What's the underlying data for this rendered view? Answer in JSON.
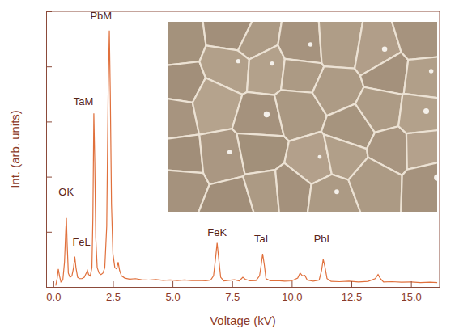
{
  "chart_data": {
    "type": "line",
    "x_label": "Voltage (kV)",
    "y_label": "Int. (arb. units)",
    "color": "#e0703c",
    "xlim": [
      -0.3,
      16.2
    ],
    "xticks": [
      {
        "value": 0,
        "label": "0.0"
      },
      2.5,
      {
        "value": 5,
        "label": "5.0"
      },
      7.5,
      {
        "value": 10,
        "label": "10.0"
      },
      12.5,
      {
        "value": 15,
        "label": "15.0"
      }
    ],
    "ylim": [
      0,
      100
    ],
    "yticks": [
      0,
      20,
      40,
      60,
      80,
      100
    ],
    "tick_labels": "x",
    "x": [
      0.1,
      0.16,
      0.21,
      0.26,
      0.32,
      0.4,
      0.47,
      0.52,
      0.55,
      0.58,
      0.63,
      0.7,
      0.78,
      0.85,
      0.9,
      0.95,
      1.02,
      1.1,
      1.2,
      1.3,
      1.38,
      1.43,
      1.48,
      1.55,
      1.62,
      1.66,
      1.7,
      1.74,
      1.78,
      1.84,
      1.92,
      2.0,
      2.08,
      2.16,
      2.24,
      2.3,
      2.35,
      2.39,
      2.44,
      2.5,
      2.58,
      2.66,
      2.72,
      2.78,
      2.86,
      3.0,
      3.2,
      3.45,
      3.7,
      4.0,
      4.3,
      4.6,
      4.9,
      5.2,
      5.5,
      5.8,
      6.1,
      6.4,
      6.6,
      6.72,
      6.8,
      6.87,
      6.94,
      7.02,
      7.15,
      7.35,
      7.6,
      7.8,
      7.95,
      8.05,
      8.25,
      8.5,
      8.65,
      8.72,
      8.78,
      8.85,
      8.92,
      9.1,
      9.4,
      9.7,
      10.0,
      10.25,
      10.35,
      10.45,
      10.55,
      10.65,
      10.9,
      11.15,
      11.25,
      11.32,
      11.4,
      11.48,
      11.65,
      12.0,
      12.4,
      12.8,
      13.2,
      13.5,
      13.62,
      13.72,
      13.85,
      14.2,
      14.6,
      15.0,
      15.4,
      15.8,
      16.1
    ],
    "values": [
      0.5,
      3,
      6.5,
      4,
      1.8,
      2.5,
      9,
      20,
      25,
      16,
      5,
      3.5,
      4,
      7,
      11,
      7,
      3.5,
      3,
      3,
      3.5,
      5,
      6,
      4.5,
      4,
      7,
      25,
      63,
      45,
      18,
      7,
      5,
      4.5,
      5,
      7,
      22,
      70,
      93,
      70,
      30,
      12,
      7,
      6.5,
      9,
      6,
      4,
      3.2,
      2.8,
      3,
      2.6,
      2.5,
      2.7,
      2.4,
      2.5,
      2.3,
      2.5,
      2.3,
      2.4,
      2.2,
      2.5,
      4,
      10,
      16,
      10,
      3.5,
      2.2,
      2.4,
      2.6,
      2.2,
      3.5,
      2.8,
      2.2,
      2.3,
      4,
      8,
      12,
      8,
      3,
      2.2,
      2.3,
      2.1,
      2.2,
      3.2,
      5,
      4,
      4.2,
      2.5,
      2.1,
      2.5,
      6,
      10,
      7,
      3,
      2,
      1.9,
      2.1,
      1.8,
      2,
      3,
      4.5,
      3,
      1.8,
      1.9,
      1.7,
      1.8,
      1.6,
      1.7,
      1.6
    ],
    "annotations": [
      {
        "text": "OK",
        "x": 0.54,
        "y": 33
      },
      {
        "text": "FeL",
        "x": 1.18,
        "y": 15
      },
      {
        "text": "TaM",
        "x": 1.26,
        "y": 66
      },
      {
        "text": "PbM",
        "x": 2.0,
        "y": 97
      },
      {
        "text": "FeK",
        "x": 6.87,
        "y": 18.5
      },
      {
        "text": "TaL",
        "x": 8.78,
        "y": 16
      },
      {
        "text": "PbL",
        "x": 11.32,
        "y": 16
      }
    ]
  }
}
